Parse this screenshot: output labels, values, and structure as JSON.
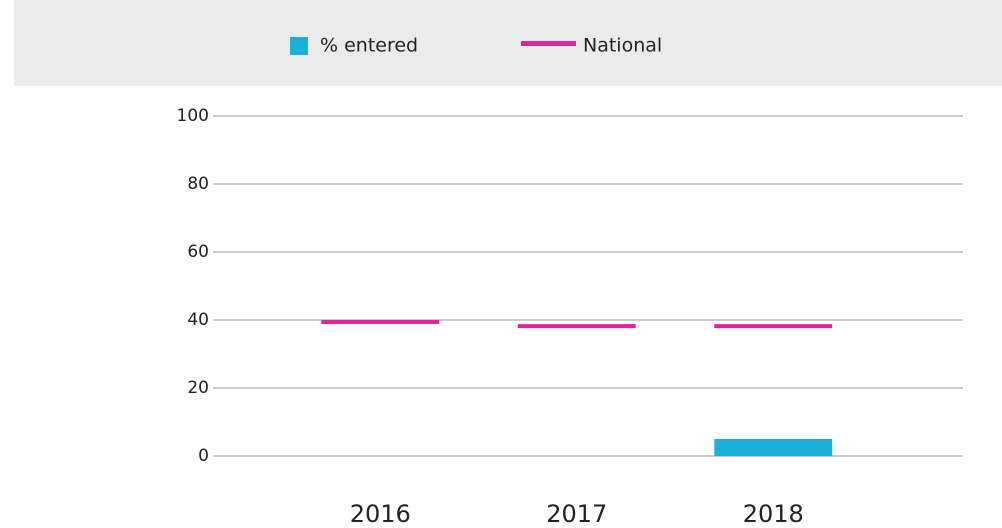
{
  "chart_data": {
    "type": "bar",
    "categories": [
      "2016",
      "2017",
      "2018"
    ],
    "series": [
      {
        "name": "% entered",
        "color": "#1ab0d8",
        "values": [
          0,
          0,
          5
        ],
        "mark": "bar"
      },
      {
        "name": "National",
        "color": "#e0249a",
        "values": [
          39.4,
          38.2,
          38.2
        ],
        "mark": "dash"
      }
    ],
    "ylim": [
      0,
      100
    ],
    "yticks": [
      0,
      20,
      40,
      60,
      80,
      100
    ],
    "grid": true,
    "legend": "top"
  }
}
